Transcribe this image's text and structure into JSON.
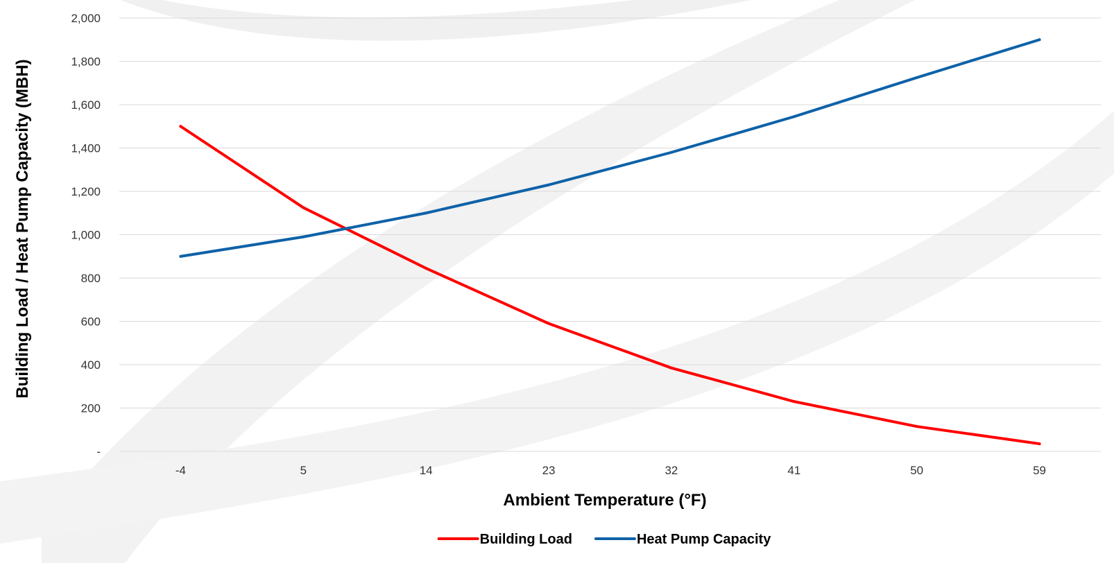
{
  "chart_data": {
    "type": "line",
    "title": "",
    "xlabel": "Ambient Temperature (°F)",
    "ylabel": "Building Load / Heat Pump Capacity (MBH)",
    "categories": [
      "-4",
      "5",
      "14",
      "23",
      "32",
      "41",
      "50",
      "59"
    ],
    "ylim": [
      0,
      2000
    ],
    "yticks": [
      0,
      200,
      400,
      600,
      800,
      1000,
      1200,
      1400,
      1600,
      1800,
      2000
    ],
    "ytick_labels": [
      "-",
      "200",
      "400",
      "600",
      "800",
      "1,000",
      "1,200",
      "1,400",
      "1,600",
      "1,800",
      "2,000"
    ],
    "grid": true,
    "legend_position": "bottom",
    "series": [
      {
        "name": "Building Load",
        "color": "#ff0000",
        "values": [
          1500,
          1125,
          845,
          590,
          385,
          230,
          115,
          35
        ]
      },
      {
        "name": "Heat Pump Capacity",
        "color": "#0e62a8",
        "values": [
          900,
          990,
          1100,
          1230,
          1380,
          1545,
          1725,
          1900
        ]
      }
    ]
  }
}
